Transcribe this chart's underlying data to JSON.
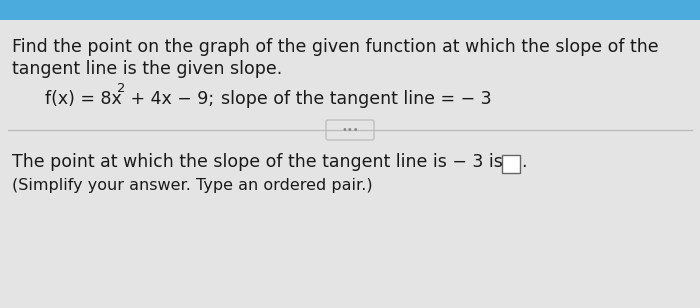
{
  "bg_top_color": "#4aabdc",
  "bg_main_color": "#e4e4e4",
  "line1": "Find the point on the graph of the given function at which the slope of the",
  "line2": "tangent line is the given slope.",
  "func_full": "f(x) = 8x",
  "func_sup": "2",
  "func_mid": " + 4x − 9;",
  "func_slope": "  slope of the tangent line = − 3",
  "divider_color": "#bbbbbb",
  "dots_text": "•••",
  "bottom_line1a": "The point at which the slope of the tangent line is − 3 is ",
  "bottom_line2": "(Simplify your answer. Type an ordered pair.)",
  "text_color": "#1a1a1a",
  "font_size_main": 12.5,
  "font_size_func": 12.5,
  "font_size_bottom": 12.5,
  "font_size_small": 10.5
}
